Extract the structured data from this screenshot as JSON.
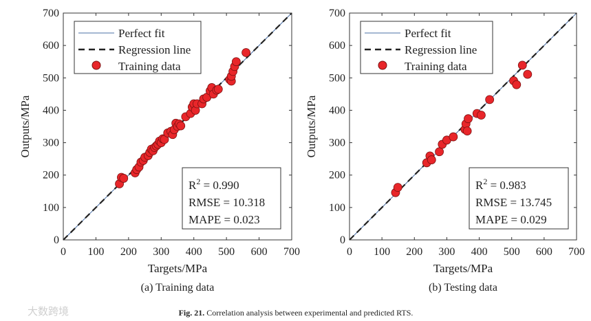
{
  "chart_data": [
    {
      "type": "scatter",
      "caption": "(a) Training data",
      "xlabel": "Targets/MPa",
      "ylabel": "Outputs/MPa",
      "xlim": [
        0,
        700
      ],
      "ylim": [
        0,
        700
      ],
      "xticks": [
        "0",
        "100",
        "200",
        "300",
        "400",
        "500",
        "600",
        "700"
      ],
      "yticks": [
        "0",
        "100",
        "200",
        "300",
        "400",
        "500",
        "600",
        "700"
      ],
      "legend": {
        "placement": "top-left",
        "entries": [
          "Perfect fit",
          "Regression line",
          "Training data"
        ]
      },
      "stats": {
        "r2_label": "R",
        "r2_sup": "2",
        "r2": " = 0.990",
        "rmse": "RMSE = 10.318",
        "mape": "MAPE = 0.023"
      },
      "points": [
        [
          172,
          173
        ],
        [
          178,
          193
        ],
        [
          185,
          190
        ],
        [
          220,
          207
        ],
        [
          225,
          217
        ],
        [
          232,
          225
        ],
        [
          238,
          240
        ],
        [
          245,
          245
        ],
        [
          250,
          255
        ],
        [
          260,
          260
        ],
        [
          265,
          270
        ],
        [
          270,
          280
        ],
        [
          275,
          275
        ],
        [
          280,
          285
        ],
        [
          285,
          290
        ],
        [
          290,
          295
        ],
        [
          295,
          305
        ],
        [
          300,
          300
        ],
        [
          305,
          312
        ],
        [
          310,
          310
        ],
        [
          320,
          330
        ],
        [
          330,
          335
        ],
        [
          335,
          325
        ],
        [
          340,
          340
        ],
        [
          345,
          360
        ],
        [
          350,
          350
        ],
        [
          355,
          358
        ],
        [
          360,
          352
        ],
        [
          375,
          380
        ],
        [
          390,
          390
        ],
        [
          395,
          410
        ],
        [
          400,
          420
        ],
        [
          405,
          400
        ],
        [
          410,
          420
        ],
        [
          425,
          420
        ],
        [
          430,
          435
        ],
        [
          440,
          440
        ],
        [
          450,
          460
        ],
        [
          455,
          470
        ],
        [
          460,
          450
        ],
        [
          470,
          462
        ],
        [
          475,
          465
        ],
        [
          510,
          495
        ],
        [
          515,
          490
        ],
        [
          515,
          505
        ],
        [
          520,
          520
        ],
        [
          525,
          535
        ],
        [
          530,
          550
        ],
        [
          560,
          578
        ]
      ]
    },
    {
      "type": "scatter",
      "caption": "(b) Testing data",
      "xlabel": "Targets/MPa",
      "ylabel": "Outputs/MPa",
      "xlim": [
        0,
        700
      ],
      "ylim": [
        0,
        700
      ],
      "xticks": [
        "0",
        "100",
        "200",
        "300",
        "400",
        "500",
        "600",
        "700"
      ],
      "yticks": [
        "0",
        "100",
        "200",
        "300",
        "400",
        "500",
        "600",
        "700"
      ],
      "legend": {
        "placement": "top-left",
        "entries": [
          "Perfect fit",
          "Regression line",
          "Training data"
        ]
      },
      "stats": {
        "r2_label": "R",
        "r2_sup": "2",
        "r2": " = 0.983",
        "rmse": "RMSE = 13.745",
        "mape": "MAPE = 0.029"
      },
      "points": [
        [
          142,
          146
        ],
        [
          149,
          162
        ],
        [
          238,
          238
        ],
        [
          248,
          259
        ],
        [
          253,
          247
        ],
        [
          277,
          272
        ],
        [
          286,
          295
        ],
        [
          300,
          308
        ],
        [
          320,
          318
        ],
        [
          356,
          341
        ],
        [
          359,
          358
        ],
        [
          363,
          336
        ],
        [
          366,
          374
        ],
        [
          393,
          390
        ],
        [
          406,
          385
        ],
        [
          432,
          433
        ],
        [
          506,
          491
        ],
        [
          515,
          479
        ],
        [
          533,
          539
        ],
        [
          549,
          511
        ]
      ]
    }
  ],
  "figure_caption": {
    "label": "Fig. 21.",
    "text": " Correlation analysis between experimental and predicted RTS."
  },
  "watermark": "大数跨境",
  "colors": {
    "marker": "#e8262a",
    "perfect": "#4a6fa5",
    "regression": "#222222"
  }
}
